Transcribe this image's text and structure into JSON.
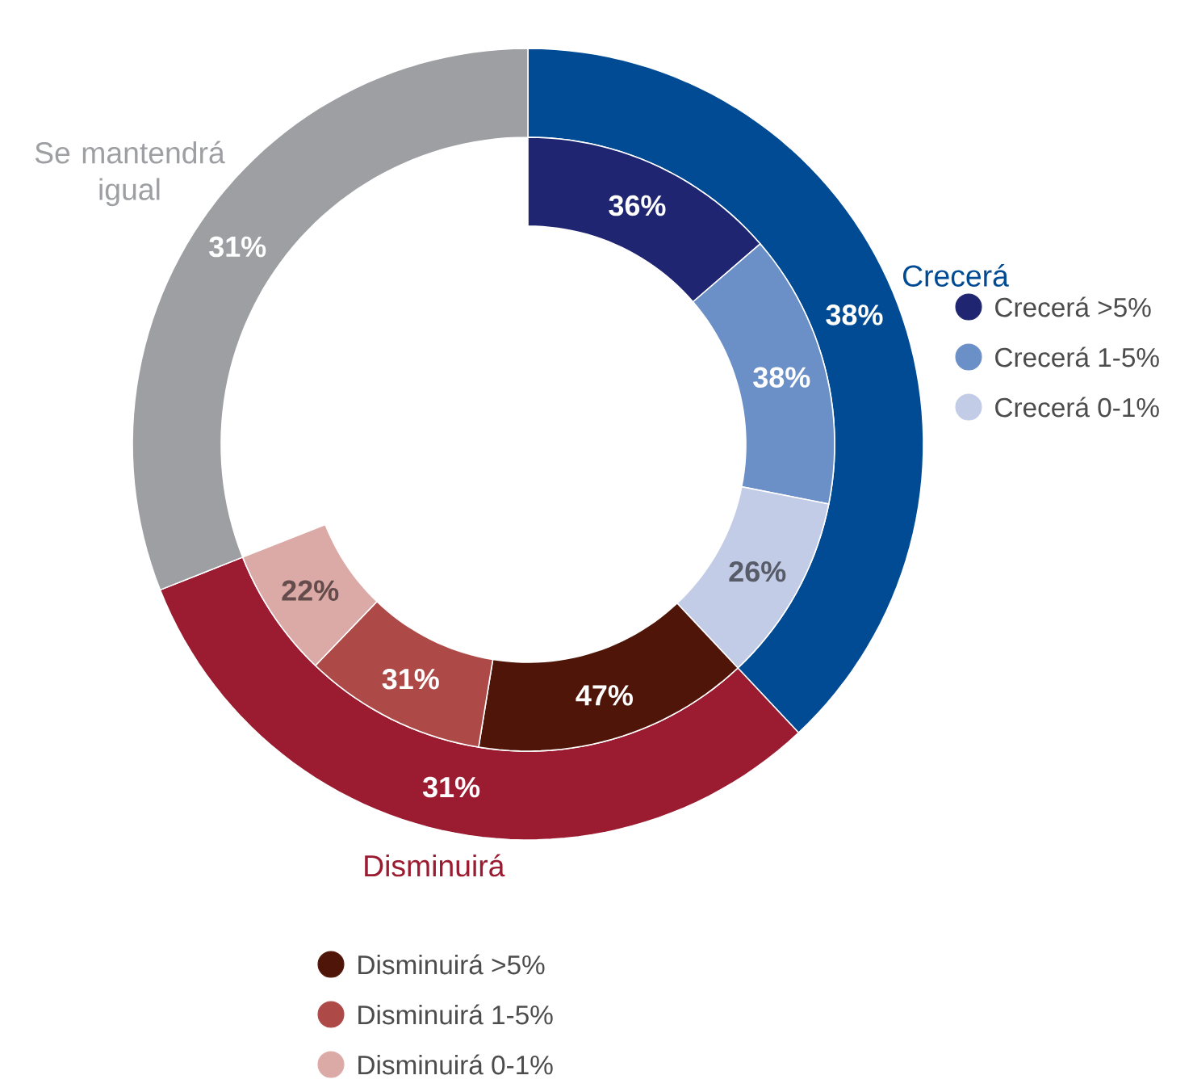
{
  "chart_data": [
    {
      "type": "donut",
      "categories": [
        "Crecerá",
        "Disminuirá",
        "Se mantendrá igual"
      ],
      "values": [
        38,
        31,
        31
      ],
      "colors": [
        "#004b93",
        "#9b1b30",
        "#9d9fa2"
      ],
      "value_labels": [
        "38%",
        "31%",
        "31%"
      ]
    },
    {
      "type": "donut",
      "categories": [
        "Crecerá >5%",
        "Crecerá 1-5%",
        "Crecerá 0-1%"
      ],
      "values": [
        36,
        38,
        26
      ],
      "colors": [
        "#1f2570",
        "#6b8fc7",
        "#c3cce6"
      ],
      "value_labels": [
        "36%",
        "38%",
        "26%"
      ],
      "legend": "right"
    },
    {
      "type": "donut",
      "categories": [
        "Disminuirá >5%",
        "Disminuirá 1-5%",
        "Disminuirá 0-1%"
      ],
      "values": [
        47,
        31,
        22
      ],
      "colors": [
        "#4f1508",
        "#ad4a47",
        "#dcaaa6"
      ],
      "value_labels": [
        "47%",
        "31%",
        "22%"
      ],
      "legend": "bottom"
    }
  ]
}
